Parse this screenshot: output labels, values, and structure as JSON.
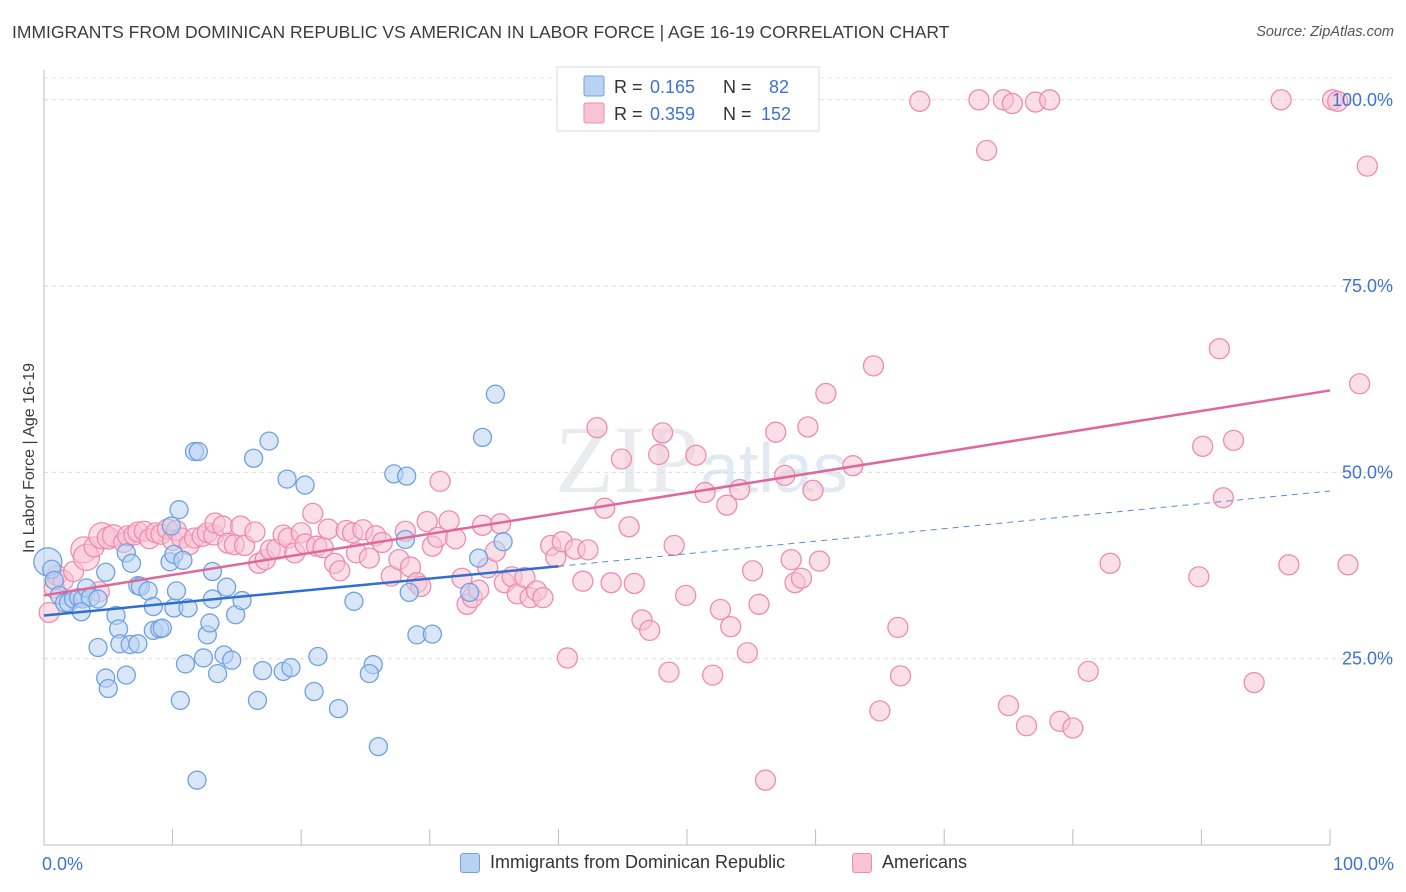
{
  "header": {
    "title": "IMMIGRANTS FROM DOMINICAN REPUBLIC VS AMERICAN IN LABOR FORCE | AGE 16-19 CORRELATION CHART",
    "source": "Source: ZipAtlas.com"
  },
  "watermark": {
    "zip": "ZIP",
    "atlas": "atlas"
  },
  "chart_data": {
    "type": "scatter",
    "xlabel": "",
    "ylabel": "In Labor Force | Age 16-19",
    "xlim": [
      0,
      100
    ],
    "ylim": [
      0,
      104
    ],
    "x_tick_labels": [
      "0.0%",
      "100.0%"
    ],
    "y_ticks": [
      25,
      50,
      75,
      100
    ],
    "y_tick_labels": [
      "25.0%",
      "50.0%",
      "75.0%",
      "100.0%"
    ],
    "grid": true,
    "legend_placement": "top-center",
    "colors": {
      "blue": "#6fa1e0",
      "blue_fill": "#b9d2f2",
      "blue_line": "#2f6fcf",
      "pink": "#f08bb0",
      "pink_fill": "#f8c4d5",
      "pink_line": "#e0679a",
      "value_text": "#3f73d1"
    },
    "series": [
      {
        "name": "Immigrants from Dominican Republic",
        "r": "0.165",
        "n": "82",
        "trend": {
          "x0": 0,
          "y0": 30.8,
          "x1": 40,
          "y1": 37.4,
          "dash_to_x": 100,
          "dash_to_y": 47.5
        },
        "points": [
          [
            0.3,
            38,
            14
          ],
          [
            0.6,
            37,
            9
          ],
          [
            0.8,
            35.5,
            9
          ],
          [
            1.2,
            33.5,
            9
          ],
          [
            1.6,
            32.5,
            9
          ],
          [
            1.9,
            32.5,
            9
          ],
          [
            2.3,
            33,
            9
          ],
          [
            2.7,
            33.2,
            9
          ],
          [
            3,
            33,
            9
          ],
          [
            3.3,
            34.5,
            9
          ],
          [
            3.6,
            33.2,
            9
          ],
          [
            2.9,
            31.3,
            9
          ],
          [
            4.2,
            33,
            9
          ],
          [
            4.8,
            36.6,
            9
          ],
          [
            5.6,
            30.8,
            9
          ],
          [
            5.8,
            29,
            9
          ],
          [
            6.4,
            39.2,
            9
          ],
          [
            6.8,
            37.8,
            9
          ],
          [
            7.3,
            34.8,
            9
          ],
          [
            4.2,
            26.5,
            9
          ],
          [
            5.9,
            27,
            9
          ],
          [
            4.8,
            22.4,
            9
          ],
          [
            5,
            21,
            9
          ],
          [
            6.4,
            22.8,
            9
          ],
          [
            6.7,
            26.9,
            9
          ],
          [
            7.3,
            27,
            9
          ],
          [
            7.5,
            34.7,
            9
          ],
          [
            8.1,
            34.1,
            9
          ],
          [
            8.5,
            32,
            9
          ],
          [
            8.5,
            28.8,
            9
          ],
          [
            9,
            29,
            9
          ],
          [
            9.2,
            29.1,
            9
          ],
          [
            9.8,
            38,
            9
          ],
          [
            9.9,
            42.8,
            9
          ],
          [
            10.1,
            39,
            9
          ],
          [
            10.1,
            31.8,
            9
          ],
          [
            10.3,
            34.1,
            9
          ],
          [
            10.5,
            45,
            9
          ],
          [
            10.8,
            38.2,
            9
          ],
          [
            10.6,
            19.4,
            9
          ],
          [
            11,
            24.3,
            9
          ],
          [
            11.2,
            31.8,
            9
          ],
          [
            11.7,
            52.8,
            9
          ],
          [
            12,
            52.8,
            9
          ],
          [
            11.9,
            8.7,
            9
          ],
          [
            12.4,
            25.1,
            9
          ],
          [
            12.7,
            28.2,
            9
          ],
          [
            12.9,
            29.8,
            9
          ],
          [
            13.1,
            33,
            9
          ],
          [
            13.1,
            36.7,
            9
          ],
          [
            13.5,
            23,
            9
          ],
          [
            14,
            25.5,
            9
          ],
          [
            14.2,
            34.6,
            9
          ],
          [
            14.6,
            24.8,
            9
          ],
          [
            14.9,
            30.9,
            9
          ],
          [
            15.4,
            32.8,
            9
          ],
          [
            16.3,
            51.9,
            9
          ],
          [
            16.6,
            19.4,
            9
          ],
          [
            17,
            23.4,
            9
          ],
          [
            17.5,
            54.2,
            9
          ],
          [
            18.9,
            49.1,
            9
          ],
          [
            18.6,
            23.3,
            9
          ],
          [
            19.2,
            23.8,
            9
          ],
          [
            20.3,
            48.3,
            9
          ],
          [
            21,
            20.6,
            9
          ],
          [
            21.3,
            25.3,
            9
          ],
          [
            22.9,
            18.3,
            9
          ],
          [
            24.1,
            32.7,
            9
          ],
          [
            25.6,
            24.2,
            9
          ],
          [
            25.3,
            23,
            9
          ],
          [
            26,
            13.2,
            9
          ],
          [
            27.2,
            49.8,
            9
          ],
          [
            28.1,
            41,
            9
          ],
          [
            28.2,
            49.5,
            9
          ],
          [
            28.4,
            33.9,
            9
          ],
          [
            29,
            28.2,
            9
          ],
          [
            30.2,
            28.3,
            9
          ],
          [
            33.1,
            33.9,
            9
          ],
          [
            33.8,
            38.5,
            9
          ],
          [
            34.1,
            54.7,
            9
          ],
          [
            35.7,
            40.7,
            9
          ],
          [
            35.1,
            60.5,
            9
          ]
        ]
      },
      {
        "name": "Americans",
        "r": "0.359",
        "n": "152",
        "trend": {
          "x0": 0,
          "y0": 33.5,
          "x1": 100,
          "y1": 61
        },
        "points": [
          [
            0.4,
            31.2,
            10
          ],
          [
            0.8,
            34.5,
            10
          ],
          [
            1,
            36.2,
            10
          ],
          [
            1.5,
            35.5,
            10
          ],
          [
            2.3,
            36.7,
            10
          ],
          [
            3.1,
            39.6,
            13
          ],
          [
            3.3,
            38.6,
            13
          ],
          [
            3.9,
            40,
            10
          ],
          [
            4.3,
            34,
            10
          ],
          [
            4.5,
            41.5,
            13
          ],
          [
            5,
            41.2,
            11
          ],
          [
            5.4,
            41.5,
            11
          ],
          [
            6.2,
            40.6,
            10
          ],
          [
            6.5,
            41.5,
            10
          ],
          [
            7,
            41.6,
            10
          ],
          [
            7.3,
            42,
            10
          ],
          [
            7.8,
            42.1,
            10
          ],
          [
            8.2,
            41.1,
            10
          ],
          [
            8.7,
            41.9,
            10
          ],
          [
            9.1,
            41.7,
            10
          ],
          [
            9.6,
            42.4,
            10
          ],
          [
            10,
            40.9,
            10
          ],
          [
            10.3,
            42.2,
            10
          ],
          [
            10.7,
            41.2,
            10
          ],
          [
            11.3,
            40.3,
            10
          ],
          [
            11.7,
            41.2,
            10
          ],
          [
            12.3,
            41.4,
            10
          ],
          [
            12.7,
            41.9,
            10
          ],
          [
            13.2,
            41.6,
            10
          ],
          [
            13.3,
            43.2,
            10
          ],
          [
            13.9,
            42.8,
            10
          ],
          [
            14.3,
            40.5,
            10
          ],
          [
            14.8,
            40.3,
            10
          ],
          [
            15.3,
            42.8,
            10
          ],
          [
            15.6,
            40.2,
            10
          ],
          [
            16.4,
            42,
            10
          ],
          [
            16.7,
            37.8,
            10
          ],
          [
            17.2,
            38.3,
            10
          ],
          [
            17.6,
            39.6,
            10
          ],
          [
            18.1,
            39.7,
            10
          ],
          [
            18.6,
            41.6,
            10
          ],
          [
            19,
            41.2,
            10
          ],
          [
            19.5,
            39.2,
            10
          ],
          [
            20,
            41.9,
            10
          ],
          [
            20.3,
            40.4,
            10
          ],
          [
            20.9,
            44.5,
            10
          ],
          [
            21.2,
            40.1,
            10
          ],
          [
            21.7,
            39.9,
            10
          ],
          [
            22.1,
            42.4,
            10
          ],
          [
            22.6,
            37.8,
            10
          ],
          [
            23,
            36.8,
            10
          ],
          [
            23.5,
            42.2,
            10
          ],
          [
            24,
            41.9,
            10
          ],
          [
            24.3,
            39.2,
            10
          ],
          [
            24.8,
            42.3,
            10
          ],
          [
            25.3,
            38.5,
            10
          ],
          [
            25.8,
            41.5,
            10
          ],
          [
            26.3,
            40.6,
            10
          ],
          [
            27,
            36.1,
            10
          ],
          [
            27.6,
            38.3,
            10
          ],
          [
            28.1,
            42.1,
            10
          ],
          [
            28.5,
            37.3,
            10
          ],
          [
            29,
            35.2,
            10
          ],
          [
            29.3,
            34.7,
            10
          ],
          [
            29.8,
            43.4,
            10
          ],
          [
            30.2,
            40.1,
            10
          ],
          [
            30.6,
            41.3,
            10
          ],
          [
            30.8,
            48.8,
            10
          ],
          [
            31.5,
            43.5,
            10
          ],
          [
            32,
            41.1,
            10
          ],
          [
            32.5,
            35.8,
            10
          ],
          [
            32.9,
            32.3,
            10
          ],
          [
            33.3,
            33.2,
            10
          ],
          [
            33.8,
            34.2,
            10
          ],
          [
            34.1,
            42.9,
            10
          ],
          [
            34.5,
            37.2,
            10
          ],
          [
            35.1,
            39.4,
            10
          ],
          [
            35.5,
            43.1,
            10
          ],
          [
            35.8,
            35.2,
            10
          ],
          [
            36.4,
            36,
            10
          ],
          [
            36.8,
            33.7,
            10
          ],
          [
            37.4,
            35.9,
            10
          ],
          [
            37.8,
            33.2,
            10
          ],
          [
            38.3,
            34.1,
            10
          ],
          [
            38.8,
            33.2,
            10
          ],
          [
            39.4,
            40.2,
            10
          ],
          [
            39.8,
            38.6,
            10
          ],
          [
            40.3,
            40.7,
            10
          ],
          [
            40.7,
            25.1,
            10
          ],
          [
            41.3,
            39.7,
            10
          ],
          [
            41.9,
            35.4,
            10
          ],
          [
            42.3,
            39.6,
            10
          ],
          [
            43,
            56,
            10
          ],
          [
            43.6,
            45.2,
            10
          ],
          [
            44.1,
            35.2,
            10
          ],
          [
            44.9,
            51.8,
            10
          ],
          [
            45.5,
            42.7,
            10
          ],
          [
            45.9,
            35.1,
            10
          ],
          [
            46.5,
            30.2,
            10
          ],
          [
            47.1,
            28.8,
            10
          ],
          [
            47.8,
            52.4,
            10
          ],
          [
            48.1,
            55.3,
            10
          ],
          [
            48.6,
            23.2,
            10
          ],
          [
            49,
            40.2,
            10
          ],
          [
            49.9,
            33.5,
            10
          ],
          [
            50.7,
            52.3,
            10
          ],
          [
            51.4,
            47.3,
            10
          ],
          [
            52,
            22.8,
            10
          ],
          [
            52.6,
            31.6,
            10
          ],
          [
            53.1,
            45.6,
            10
          ],
          [
            53.4,
            29.3,
            10
          ],
          [
            54.1,
            47.7,
            10
          ],
          [
            54.7,
            25.8,
            10
          ],
          [
            55.1,
            36.8,
            10
          ],
          [
            55.6,
            32.3,
            10
          ],
          [
            56.1,
            8.7,
            10
          ],
          [
            56.9,
            55.4,
            10
          ],
          [
            57.6,
            49.6,
            10
          ],
          [
            58.1,
            38.3,
            10
          ],
          [
            58.4,
            35.2,
            10
          ],
          [
            58.9,
            35.8,
            10
          ],
          [
            59.4,
            56.1,
            10
          ],
          [
            59.8,
            47.6,
            10
          ],
          [
            60.3,
            38.1,
            10
          ],
          [
            60.8,
            60.6,
            10
          ],
          [
            62.9,
            50.9,
            10
          ],
          [
            64.5,
            64.3,
            10
          ],
          [
            65,
            18,
            10
          ],
          [
            66.4,
            29.2,
            10
          ],
          [
            66.6,
            22.7,
            10
          ],
          [
            68.1,
            99.8,
            10
          ],
          [
            72.7,
            100,
            10
          ],
          [
            73.3,
            93.2,
            10
          ],
          [
            74.6,
            100,
            10
          ],
          [
            75.3,
            99.5,
            10
          ],
          [
            77.1,
            99.7,
            10
          ],
          [
            78.2,
            100,
            10
          ],
          [
            76.4,
            16,
            10
          ],
          [
            75,
            18.7,
            10
          ],
          [
            79,
            16.6,
            10
          ],
          [
            80,
            15.7,
            10
          ],
          [
            81.2,
            23.3,
            10
          ],
          [
            82.9,
            37.8,
            10
          ],
          [
            89.8,
            36,
            10
          ],
          [
            90.1,
            53.5,
            10
          ],
          [
            91.4,
            66.6,
            10
          ],
          [
            91.7,
            46.6,
            10
          ],
          [
            92.5,
            54.3,
            10
          ],
          [
            94.1,
            21.8,
            10
          ],
          [
            96.2,
            100,
            10
          ],
          [
            96.8,
            37.6,
            10
          ],
          [
            100.2,
            100,
            10
          ],
          [
            100.6,
            99.8,
            10
          ],
          [
            101.4,
            37.6,
            10
          ],
          [
            102.3,
            61.9,
            10
          ],
          [
            102.9,
            91.1,
            10
          ]
        ]
      }
    ]
  }
}
